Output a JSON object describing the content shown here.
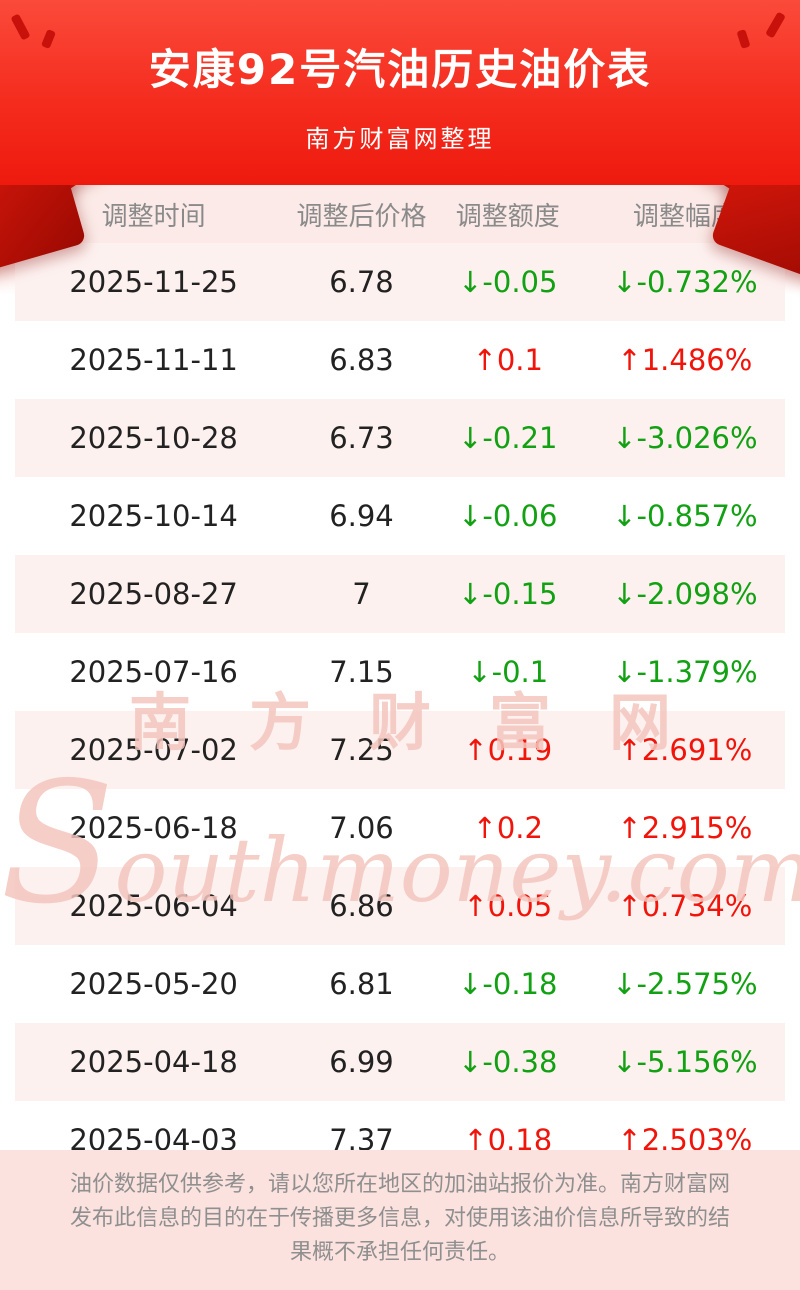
{
  "header": {
    "title": "安康92号汽油历史油价表",
    "subtitle": "南方财富网整理"
  },
  "watermark": {
    "cn": "南方财富网",
    "en": "Southmoney.com"
  },
  "chart_data": {
    "type": "table",
    "title": "安康92号汽油历史油价表",
    "columns": [
      "调整时间",
      "调整后价格",
      "调整额度",
      "调整幅度"
    ],
    "rows": [
      {
        "date": "2025-11-25",
        "price": "6.78",
        "change": "↓-0.05",
        "percent": "↓-0.732%",
        "direction": "down"
      },
      {
        "date": "2025-11-11",
        "price": "6.83",
        "change": "↑0.1",
        "percent": "↑1.486%",
        "direction": "up"
      },
      {
        "date": "2025-10-28",
        "price": "6.73",
        "change": "↓-0.21",
        "percent": "↓-3.026%",
        "direction": "down"
      },
      {
        "date": "2025-10-14",
        "price": "6.94",
        "change": "↓-0.06",
        "percent": "↓-0.857%",
        "direction": "down"
      },
      {
        "date": "2025-08-27",
        "price": "7",
        "change": "↓-0.15",
        "percent": "↓-2.098%",
        "direction": "down"
      },
      {
        "date": "2025-07-16",
        "price": "7.15",
        "change": "↓-0.1",
        "percent": "↓-1.379%",
        "direction": "down"
      },
      {
        "date": "2025-07-02",
        "price": "7.25",
        "change": "↑0.19",
        "percent": "↑2.691%",
        "direction": "up"
      },
      {
        "date": "2025-06-18",
        "price": "7.06",
        "change": "↑0.2",
        "percent": "↑2.915%",
        "direction": "up"
      },
      {
        "date": "2025-06-04",
        "price": "6.86",
        "change": "↑0.05",
        "percent": "↑0.734%",
        "direction": "up"
      },
      {
        "date": "2025-05-20",
        "price": "6.81",
        "change": "↓-0.18",
        "percent": "↓-2.575%",
        "direction": "down"
      },
      {
        "date": "2025-04-18",
        "price": "6.99",
        "change": "↓-0.38",
        "percent": "↓-5.156%",
        "direction": "down"
      },
      {
        "date": "2025-04-03",
        "price": "7.37",
        "change": "↑0.18",
        "percent": "↑2.503%",
        "direction": "up"
      }
    ]
  },
  "footer": {
    "text": "油价数据仅供参考，请以您所在地区的加油站报价为准。南方财富网发布此信息的目的在于传播更多信息，对使用该油价信息所导致的结果概不承担任何责任。"
  },
  "colors": {
    "banner_red_top": "#fb4a3a",
    "banner_red_bottom": "#ee1a0e",
    "up_red": "#f0140a",
    "down_green": "#12a112",
    "row_pink": "#fdf1ef",
    "header_row_pink": "#fbeae7",
    "footer_pink": "#fbe2df",
    "watermark_pink": "#f3c6bd"
  }
}
